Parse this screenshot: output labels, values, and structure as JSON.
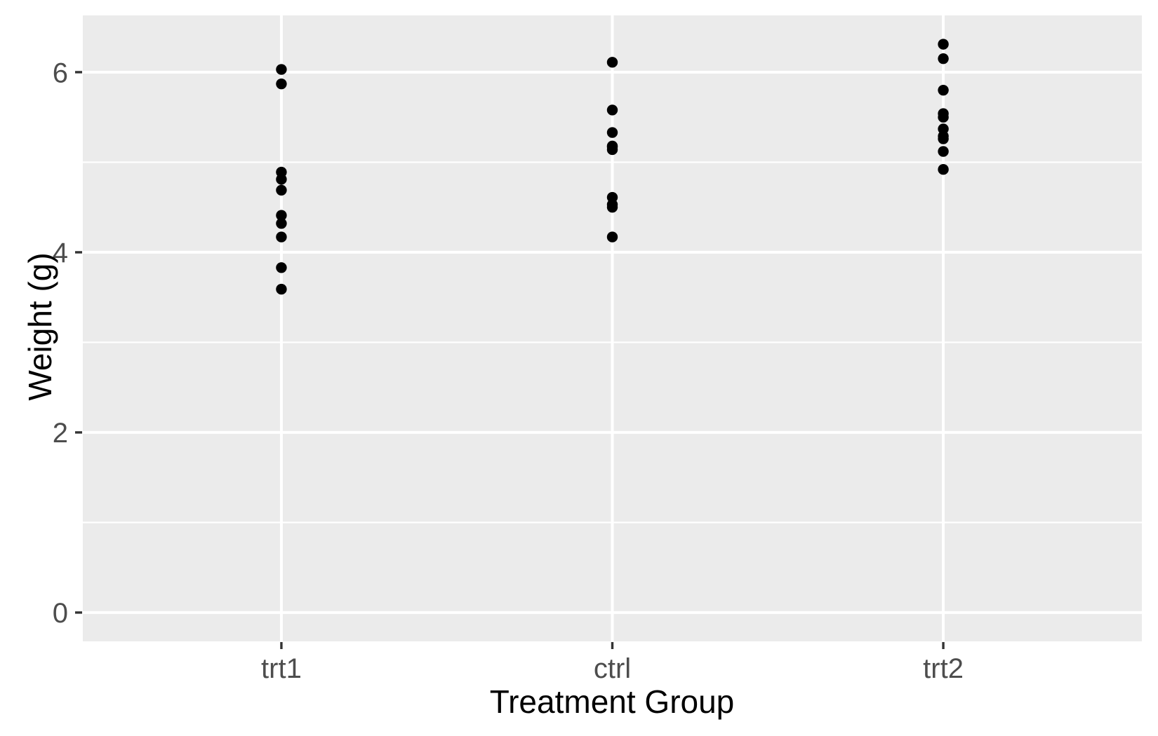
{
  "chart_data": {
    "type": "scatter",
    "title": "",
    "xlabel": "Treatment Group",
    "ylabel": "Weight (g)",
    "categories": [
      "trt1",
      "ctrl",
      "trt2"
    ],
    "series": [
      {
        "name": "trt1",
        "values": [
          6.03,
          5.87,
          4.89,
          4.81,
          4.69,
          4.41,
          4.32,
          4.17,
          3.83,
          3.59
        ]
      },
      {
        "name": "ctrl",
        "values": [
          6.11,
          5.58,
          5.33,
          5.18,
          5.17,
          5.14,
          4.61,
          4.53,
          4.5,
          4.17
        ]
      },
      {
        "name": "trt2",
        "values": [
          6.31,
          6.15,
          5.8,
          5.54,
          5.5,
          5.37,
          5.29,
          5.26,
          5.12,
          4.92
        ]
      }
    ],
    "y_major_ticks": [
      0,
      2,
      4,
      6
    ],
    "y_tick_labels": [
      "0",
      "2",
      "4",
      "6"
    ],
    "y_minor_ticks": [
      1,
      3,
      5
    ],
    "ylim": [
      -0.32,
      6.63
    ],
    "grid": true,
    "legend": false,
    "colors": {
      "page_bg": "#FFFFFF",
      "panel_bg": "#EBEBEB",
      "grid": "#FFFFFF",
      "point": "#000000",
      "tick_label": "#4D4D4D",
      "tick_mark": "#333333",
      "axis_title": "#000000"
    }
  }
}
